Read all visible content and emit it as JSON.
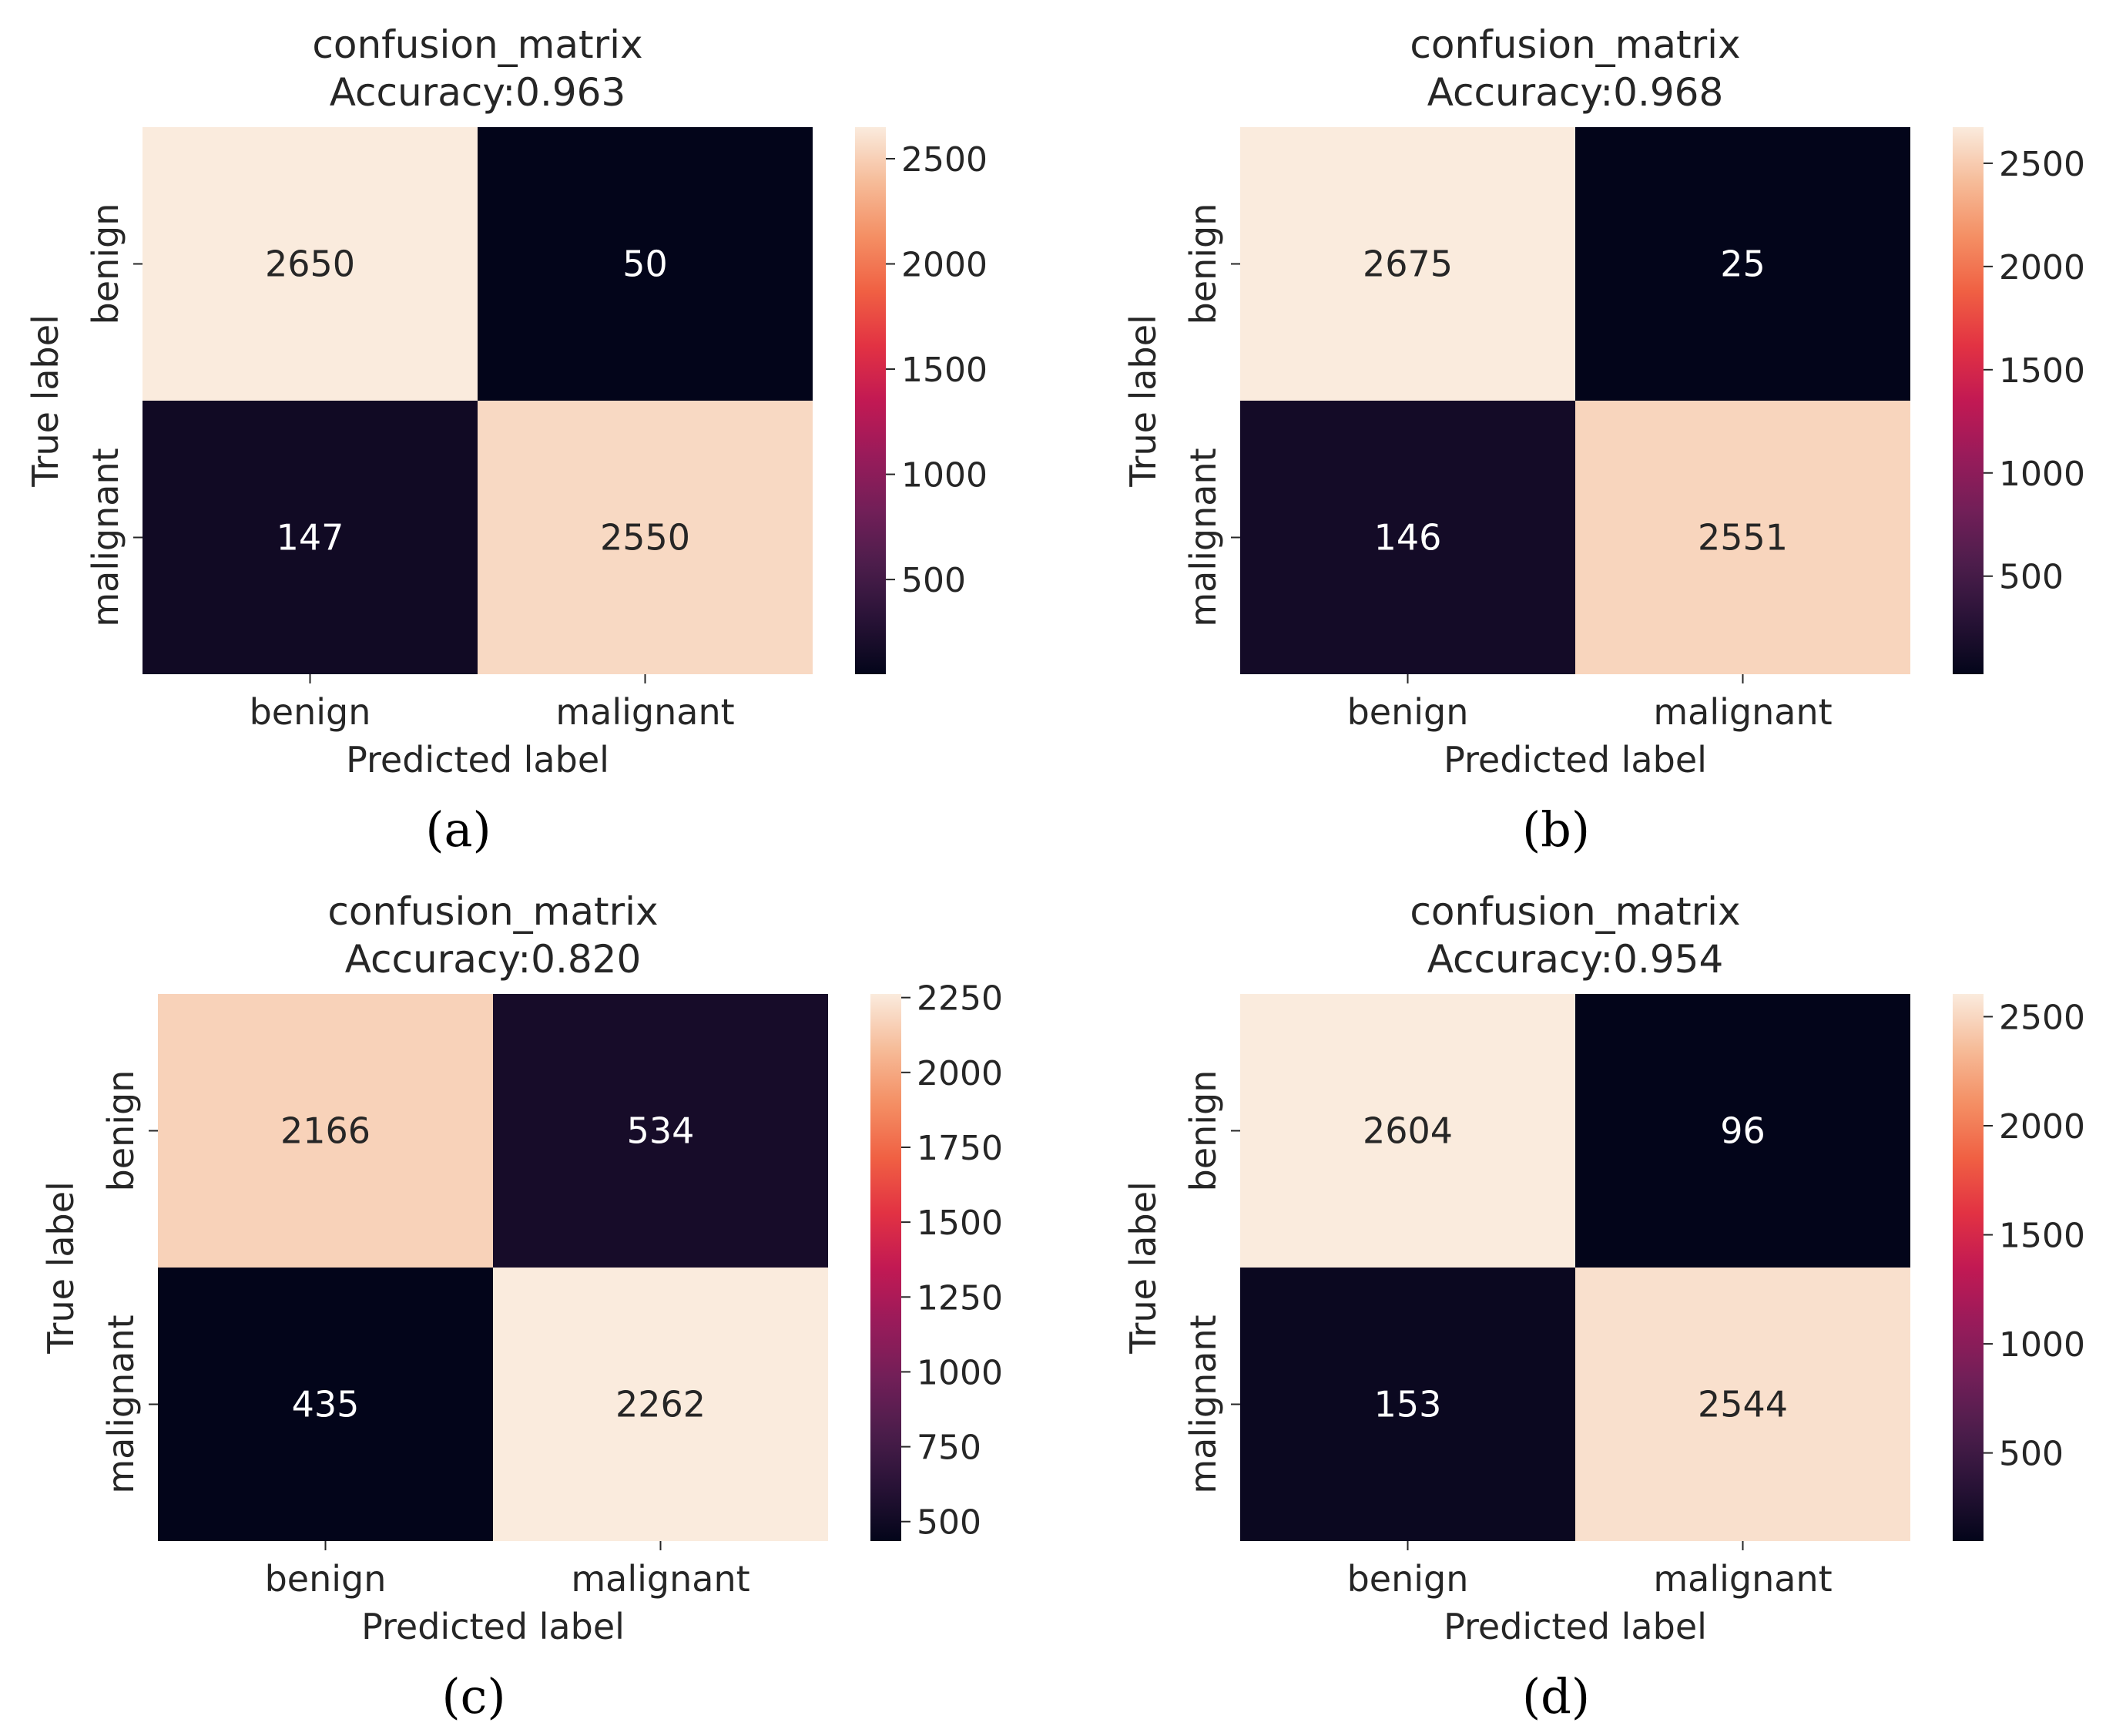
{
  "chart_data": [
    {
      "type": "heatmap",
      "title": "confusion_matrix",
      "subtitle": "Accuracy:0.963",
      "xlabel": "Predicted label",
      "ylabel": "True label",
      "x_categories": [
        "benign",
        "malignant"
      ],
      "y_categories": [
        "benign",
        "malignant"
      ],
      "values": [
        [
          2650,
          50
        ],
        [
          147,
          2550
        ]
      ],
      "colorbar_range": [
        50,
        2650
      ],
      "colorbar_ticks": [
        500,
        1000,
        1500,
        2000,
        2500
      ],
      "colormap": "rocket",
      "caption": "(a)"
    },
    {
      "type": "heatmap",
      "title": "confusion_matrix",
      "subtitle": "Accuracy:0.968",
      "xlabel": "Predicted label",
      "ylabel": "True label",
      "x_categories": [
        "benign",
        "malignant"
      ],
      "y_categories": [
        "benign",
        "malignant"
      ],
      "values": [
        [
          2675,
          25
        ],
        [
          146,
          2551
        ]
      ],
      "colorbar_range": [
        25,
        2675
      ],
      "colorbar_ticks": [
        500,
        1000,
        1500,
        2000,
        2500
      ],
      "colormap": "rocket",
      "caption": "(b)"
    },
    {
      "type": "heatmap",
      "title": "confusion_matrix",
      "subtitle": "Accuracy:0.820",
      "xlabel": "Predicted label",
      "ylabel": "True label",
      "x_categories": [
        "benign",
        "malignant"
      ],
      "y_categories": [
        "benign",
        "malignant"
      ],
      "values": [
        [
          2166,
          534
        ],
        [
          435,
          2262
        ]
      ],
      "colorbar_range": [
        435,
        2262
      ],
      "colorbar_ticks": [
        500,
        750,
        1000,
        1250,
        1500,
        1750,
        2000,
        2250
      ],
      "colormap": "rocket",
      "caption": "(c)"
    },
    {
      "type": "heatmap",
      "title": "confusion_matrix",
      "subtitle": "Accuracy:0.954",
      "xlabel": "Predicted label",
      "ylabel": "True label",
      "x_categories": [
        "benign",
        "malignant"
      ],
      "y_categories": [
        "benign",
        "malignant"
      ],
      "values": [
        [
          2604,
          96
        ],
        [
          153,
          2544
        ]
      ],
      "colorbar_range": [
        96,
        2604
      ],
      "colorbar_ticks": [
        500,
        1000,
        1500,
        2000,
        2500
      ],
      "colormap": "rocket",
      "caption": "(d)"
    }
  ]
}
